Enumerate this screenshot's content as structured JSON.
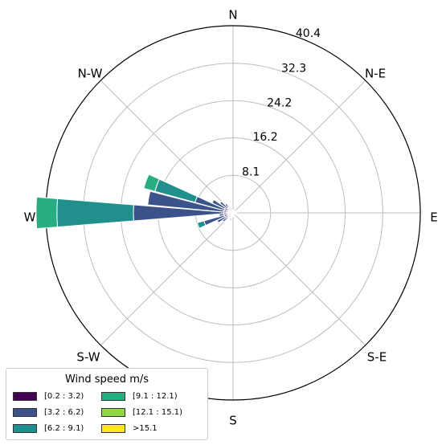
{
  "chart_data": {
    "type": "windrose",
    "legend_title": "Wind speed m/s",
    "directions": [
      "N",
      "N-E",
      "E",
      "S-E",
      "S",
      "S-W",
      "W",
      "N-W"
    ],
    "radial_ticks": [
      "8.1",
      "16.2",
      "24.2",
      "32.3",
      "40.4"
    ],
    "radial_values": [
      8.1,
      16.2,
      24.2,
      32.3,
      40.4
    ],
    "rmax": 40.4,
    "bins": [
      {
        "label": "[0.2 : 3.2)",
        "color": "#440154"
      },
      {
        "label": "[3.2 : 6.2)",
        "color": "#3b528b"
      },
      {
        "label": "[6.2 : 9.1)",
        "color": "#21908d"
      },
      {
        "label": "[9.1 : 12.1)",
        "color": "#27ad81"
      },
      {
        "label": "[12.1 : 15.1)",
        "color": "#8fd744"
      },
      {
        "label": ">15.1",
        "color": "#fde725"
      }
    ],
    "sector_width_deg": 10,
    "sectors": [
      {
        "dir_deg": 270,
        "values": [
          2,
          19.5,
          16.5,
          4.5,
          0,
          0
        ]
      },
      {
        "dir_deg": 280,
        "values": [
          2,
          16.5,
          0,
          0,
          0,
          0
        ]
      },
      {
        "dir_deg": 290,
        "values": [
          2,
          6.5,
          9,
          2.5,
          0,
          0
        ]
      },
      {
        "dir_deg": 300,
        "values": [
          2,
          3,
          0,
          0,
          0,
          0
        ]
      },
      {
        "dir_deg": 310,
        "values": [
          1.5,
          2,
          0,
          0,
          0,
          0
        ]
      },
      {
        "dir_deg": 320,
        "values": [
          1.5,
          1,
          0,
          0,
          0,
          0
        ]
      },
      {
        "dir_deg": 330,
        "values": [
          1,
          0,
          0,
          0,
          0,
          0
        ]
      },
      {
        "dir_deg": 260,
        "values": [
          2,
          1,
          0,
          0,
          0,
          0
        ]
      },
      {
        "dir_deg": 250,
        "values": [
          2,
          4.5,
          1.5,
          0,
          0,
          0
        ]
      },
      {
        "dir_deg": 240,
        "values": [
          1.8,
          2,
          0,
          0,
          0,
          0
        ]
      },
      {
        "dir_deg": 230,
        "values": [
          1.5,
          1.3,
          0,
          0,
          0,
          0
        ]
      },
      {
        "dir_deg": 220,
        "values": [
          1,
          0.5,
          0,
          0,
          0,
          0
        ]
      },
      {
        "dir_deg": 200,
        "values": [
          1,
          0.8,
          0,
          0,
          0,
          0
        ]
      },
      {
        "dir_deg": 190,
        "values": [
          0.8,
          0,
          0,
          0,
          0,
          0
        ]
      },
      {
        "dir_deg": 180,
        "values": [
          0.8,
          0,
          0,
          0,
          0,
          0
        ]
      },
      {
        "dir_deg": 170,
        "values": [
          0.6,
          0,
          0,
          0,
          0,
          0
        ]
      },
      {
        "dir_deg": 40,
        "values": [
          0.6,
          0,
          0,
          0,
          0,
          0
        ]
      },
      {
        "dir_deg": 60,
        "values": [
          0.8,
          0,
          0,
          0,
          0,
          0
        ]
      },
      {
        "dir_deg": 90,
        "values": [
          0.8,
          0,
          0,
          0,
          0,
          0
        ]
      },
      {
        "dir_deg": 120,
        "values": [
          0.6,
          0,
          0,
          0,
          0,
          0
        ]
      },
      {
        "dir_deg": 350,
        "values": [
          0.6,
          0,
          0,
          0,
          0,
          0
        ]
      },
      {
        "dir_deg": 10,
        "values": [
          0.5,
          0,
          0,
          0,
          0,
          0
        ]
      }
    ]
  }
}
